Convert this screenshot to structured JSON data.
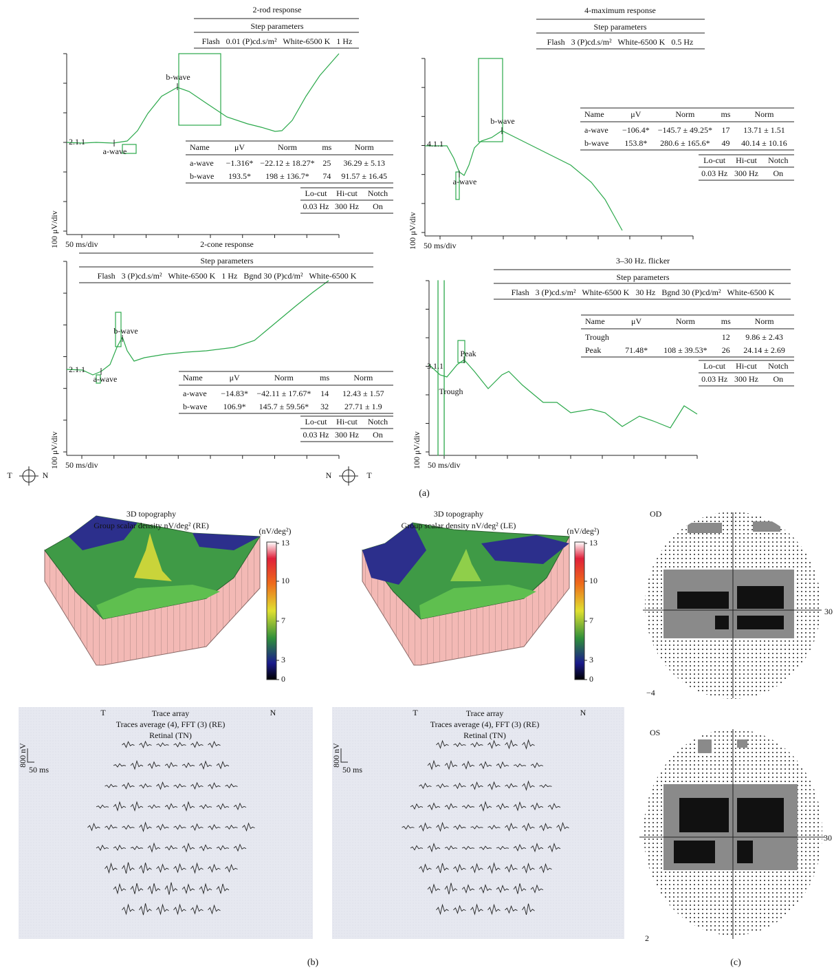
{
  "panel_a": {
    "label": "(a)",
    "responses": [
      {
        "title": "2-rod response",
        "step_title": "Step parameters",
        "parameters": "Flash   0.01 (P)cd.s/m²   White-6500 K   1 Hz",
        "marker": "2.1.1",
        "wave_labels": [
          "a-wave",
          "b-wave"
        ],
        "results": {
          "header": [
            "Name",
            "μV",
            "Norm",
            "ms",
            "Norm"
          ],
          "rows": [
            [
              "a-wave",
              "−1.316*",
              "−22.12 ± 18.27*",
              "25",
              "36.29 ± 5.13"
            ],
            [
              "b-wave",
              "193.5*",
              "198 ± 136.7*",
              "74",
              "91.57 ± 16.45"
            ]
          ]
        },
        "filters": {
          "header": [
            "Lo-cut",
            "Hi-cut",
            "Notch"
          ],
          "row": [
            "0.03 Hz",
            "300 Hz",
            "On"
          ]
        },
        "y_scale": "100 μV/div",
        "x_scale": "50 ms/div"
      },
      {
        "title": "4-maximum response",
        "step_title": "Step parameters",
        "parameters": "Flash   3 (P)cd.s/m²   White-6500 K   0.5 Hz",
        "marker": "4.1.1",
        "wave_labels": [
          "a-wave",
          "b-wave"
        ],
        "results": {
          "header": [
            "Name",
            "μV",
            "Norm",
            "ms",
            "Norm"
          ],
          "rows": [
            [
              "a-wave",
              "−106.4*",
              "−145.7 ± 49.25*",
              "17",
              "13.71 ± 1.51"
            ],
            [
              "b-wave",
              "153.8*",
              "280.6 ± 165.6*",
              "49",
              "40.14 ± 10.16"
            ]
          ]
        },
        "filters": {
          "header": [
            "Lo-cut",
            "Hi-cut",
            "Notch"
          ],
          "row": [
            "0.03 Hz",
            "300 Hz",
            "On"
          ]
        },
        "y_scale": "100 μV/div",
        "x_scale": "50 ms/div"
      },
      {
        "title": "2-cone response",
        "step_title": "Step parameters",
        "parameters": "Flash   3 (P)cd.s/m²   White-6500 K   1 Hz   Bgnd 30 (P)cd/m²   White-6500 K",
        "marker": "2.1.1",
        "wave_labels": [
          "a-wave",
          "b-wave"
        ],
        "results": {
          "header": [
            "Name",
            "μV",
            "Norm",
            "ms",
            "Norm"
          ],
          "rows": [
            [
              "a-wave",
              "−14.83*",
              "−42.11 ± 17.67*",
              "14",
              "12.43 ± 1.57"
            ],
            [
              "b-wave",
              "106.9*",
              "145.7 ± 59.56*",
              "32",
              "27.71 ± 1.9"
            ]
          ]
        },
        "filters": {
          "header": [
            "Lo-cut",
            "Hi-cut",
            "Notch"
          ],
          "row": [
            "0.03 Hz",
            "300 Hz",
            "On"
          ]
        },
        "y_scale": "100 μV/div",
        "x_scale": "50 ms/div"
      },
      {
        "title": "3–30 Hz. flicker",
        "step_title": "Step parameters",
        "parameters": "Flash   3 (P)cd.s/m²   White-6500 K   30 Hz   Bgnd 30 (P)cd/m²   White-6500 K",
        "marker": "3.1.1",
        "wave_labels": [
          "Trough",
          "Peak"
        ],
        "results": {
          "header": [
            "Name",
            "μV",
            "Norm",
            "ms",
            "Norm"
          ],
          "rows": [
            [
              "Trough",
              null,
              null,
              "12",
              "9.86 ± 2.43"
            ],
            [
              "Peak",
              "71.48*",
              "108 ± 39.53*",
              "26",
              "24.14 ± 2.69"
            ]
          ]
        },
        "filters": {
          "header": [
            "Lo-cut",
            "Hi-cut",
            "Notch"
          ],
          "row": [
            "0.03 Hz",
            "300 Hz",
            "On"
          ]
        },
        "y_scale": "100 μV/div",
        "x_scale": "50 ms/div"
      }
    ]
  },
  "panel_b": {
    "label": "(b)",
    "topographies": [
      {
        "title": "3D topography",
        "subtitle": "Group scalar density nV/deg² (RE)",
        "unit": "(nV/deg²)",
        "scale": [
          13,
          10,
          7,
          3,
          0
        ],
        "orientation": [
          "T",
          "N"
        ]
      },
      {
        "title": "3D topography",
        "subtitle": "Group scalar density nV/deg² (LE)",
        "unit": "(nV/deg²)",
        "scale": [
          13,
          10,
          7,
          3,
          0
        ],
        "orientation": [
          "N",
          "T"
        ]
      }
    ],
    "trace_arrays": [
      {
        "side_labels": [
          "T",
          "N"
        ],
        "title": "Trace array",
        "subtitle": "Traces average (4), FFT (3) (RE)",
        "region": "Retinal (TN)",
        "amplitude": "800 nV",
        "time": "50 ms"
      },
      {
        "side_labels": [
          "T",
          "N"
        ],
        "title": "Trace array",
        "subtitle": "Traces average (4), FFT (3) (RE)",
        "region": "Retinal (TN)",
        "amplitude": "800 nV",
        "time": "50 ms"
      }
    ]
  },
  "panel_c": {
    "label": "(c)",
    "fields": [
      {
        "eye": "OD",
        "edge": "30",
        "corner": "−4"
      },
      {
        "eye": "OS",
        "edge": "30",
        "corner": "2"
      }
    ]
  }
}
